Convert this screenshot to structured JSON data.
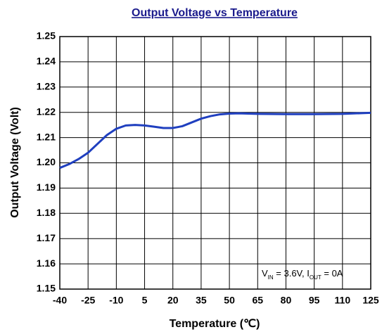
{
  "chart_data": {
    "type": "line",
    "title": "Output Voltage vs Temperature",
    "xlabel": "Temperature (℃)",
    "ylabel": "Output Voltage (Volt)",
    "annotation": [
      "V",
      "IN",
      " = 3.6V, I",
      "OUT",
      " = 0A"
    ],
    "x": [
      -40,
      -35,
      -30,
      -25,
      -20,
      -15,
      -10,
      -5,
      0,
      5,
      10,
      15,
      20,
      25,
      30,
      35,
      40,
      45,
      50,
      55,
      65,
      80,
      95,
      110,
      125
    ],
    "series": [
      {
        "name": "Output Voltage",
        "color": "#1f3fbf",
        "values": [
          1.198,
          1.1995,
          1.2015,
          1.204,
          1.2075,
          1.211,
          1.2135,
          1.2148,
          1.215,
          1.2148,
          1.2143,
          1.2138,
          1.2138,
          1.2145,
          1.216,
          1.2175,
          1.2185,
          1.2192,
          1.2195,
          1.2196,
          1.2194,
          1.2193,
          1.2193,
          1.2194,
          1.2198
        ]
      }
    ],
    "xlim": [
      -40,
      125
    ],
    "xticks": [
      -40,
      -25,
      -10,
      5,
      20,
      35,
      50,
      65,
      80,
      95,
      110,
      125
    ],
    "ylim": [
      1.15,
      1.25
    ],
    "yticks": [
      1.15,
      1.16,
      1.17,
      1.18,
      1.19,
      {
        "value": 1.2,
        "label": "1.20"
      },
      1.21,
      1.22,
      1.23,
      1.24,
      1.25
    ],
    "grid": true,
    "title_color": "#1a1a8c"
  }
}
